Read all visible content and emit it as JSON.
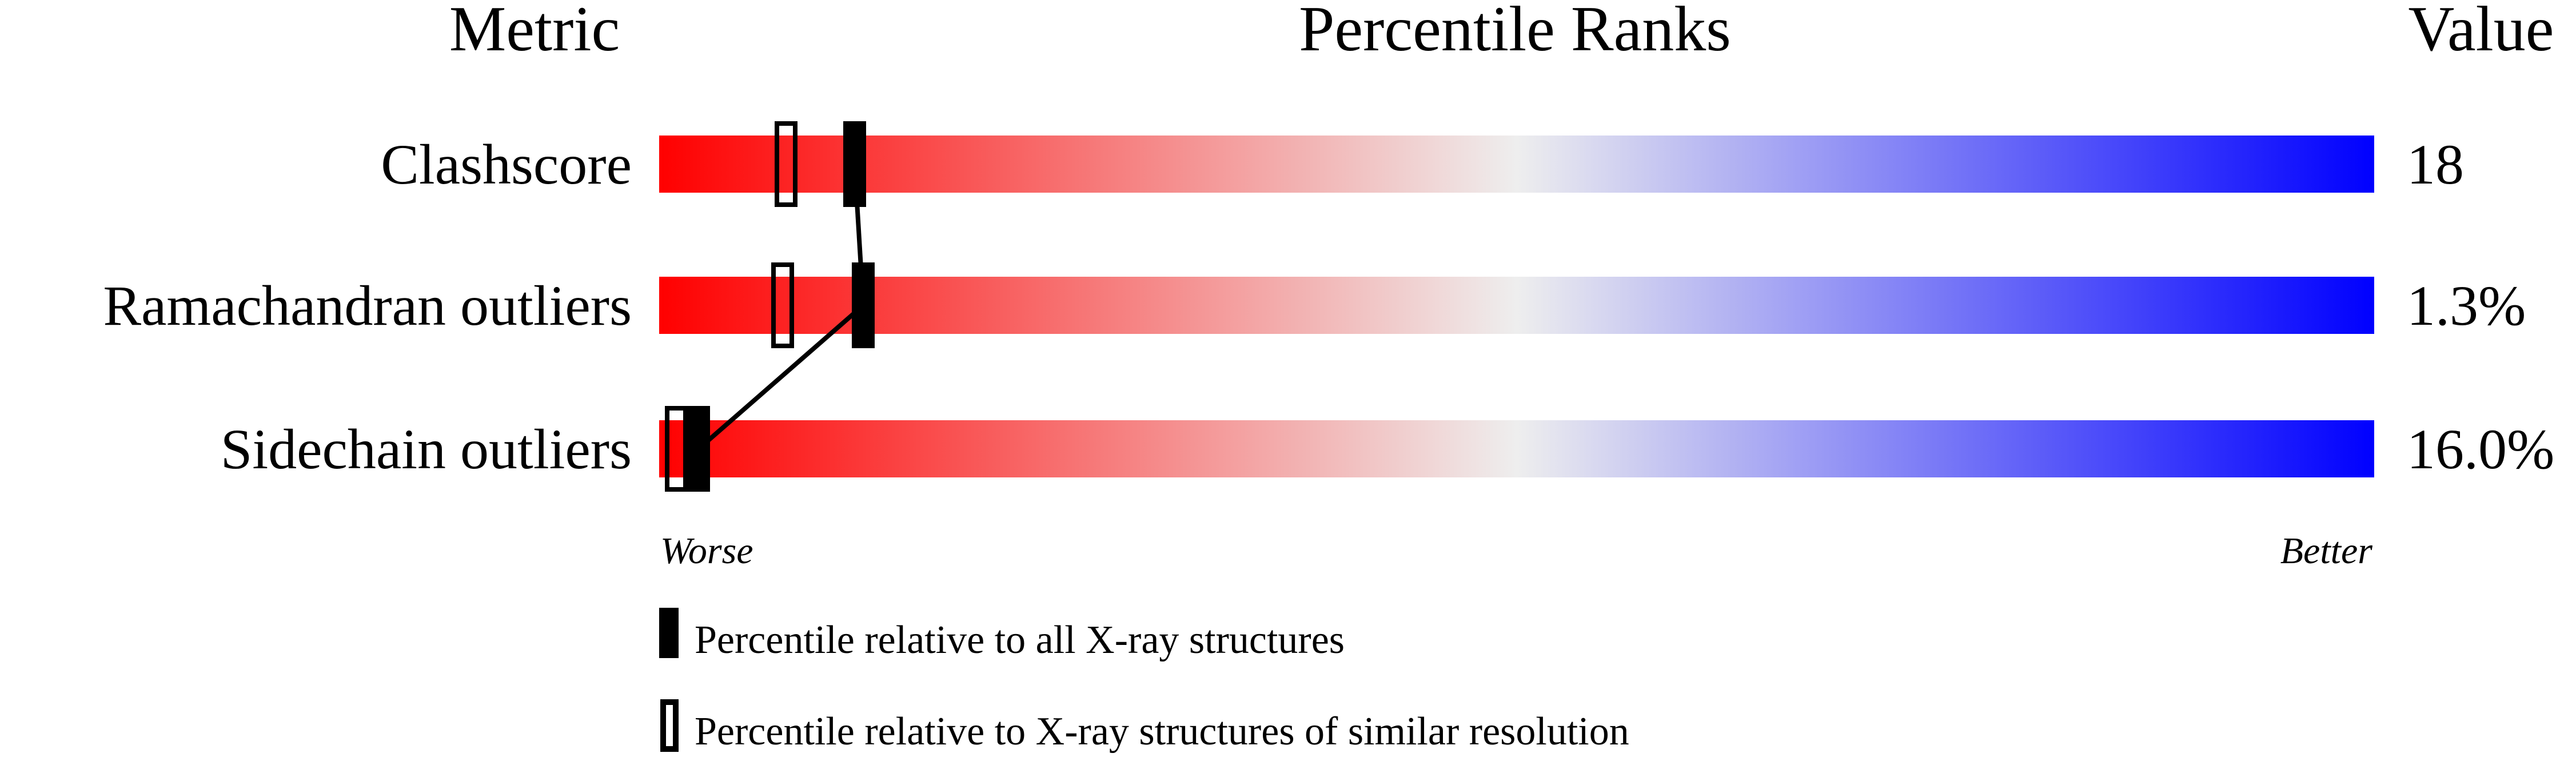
{
  "chart_data": {
    "type": "percentile-bar",
    "headers": {
      "metric": "Metric",
      "ranks": "Percentile Ranks",
      "value": "Value"
    },
    "xlim": [
      0,
      100
    ],
    "axis_labels": {
      "left": "Worse",
      "right": "Better"
    },
    "gradient_colors": [
      "#ff0000",
      "#eeeeee",
      "#0000ff"
    ],
    "rows": [
      {
        "metric": "Clashscore",
        "value": "18",
        "percentile_all": 11.4,
        "percentile_similar": 7.4
      },
      {
        "metric": "Ramachandran outliers",
        "value": "1.3%",
        "percentile_all": 11.9,
        "percentile_similar": 7.2
      },
      {
        "metric": "Sidechain outliers",
        "value": "16.0%",
        "percentile_all": 2.3,
        "percentile_similar": 1.0
      }
    ],
    "legend": [
      {
        "marker": "filled",
        "label": "Percentile relative to all X-ray structures"
      },
      {
        "marker": "open",
        "label": "Percentile relative to X-ray structures of similar resolution"
      }
    ]
  }
}
